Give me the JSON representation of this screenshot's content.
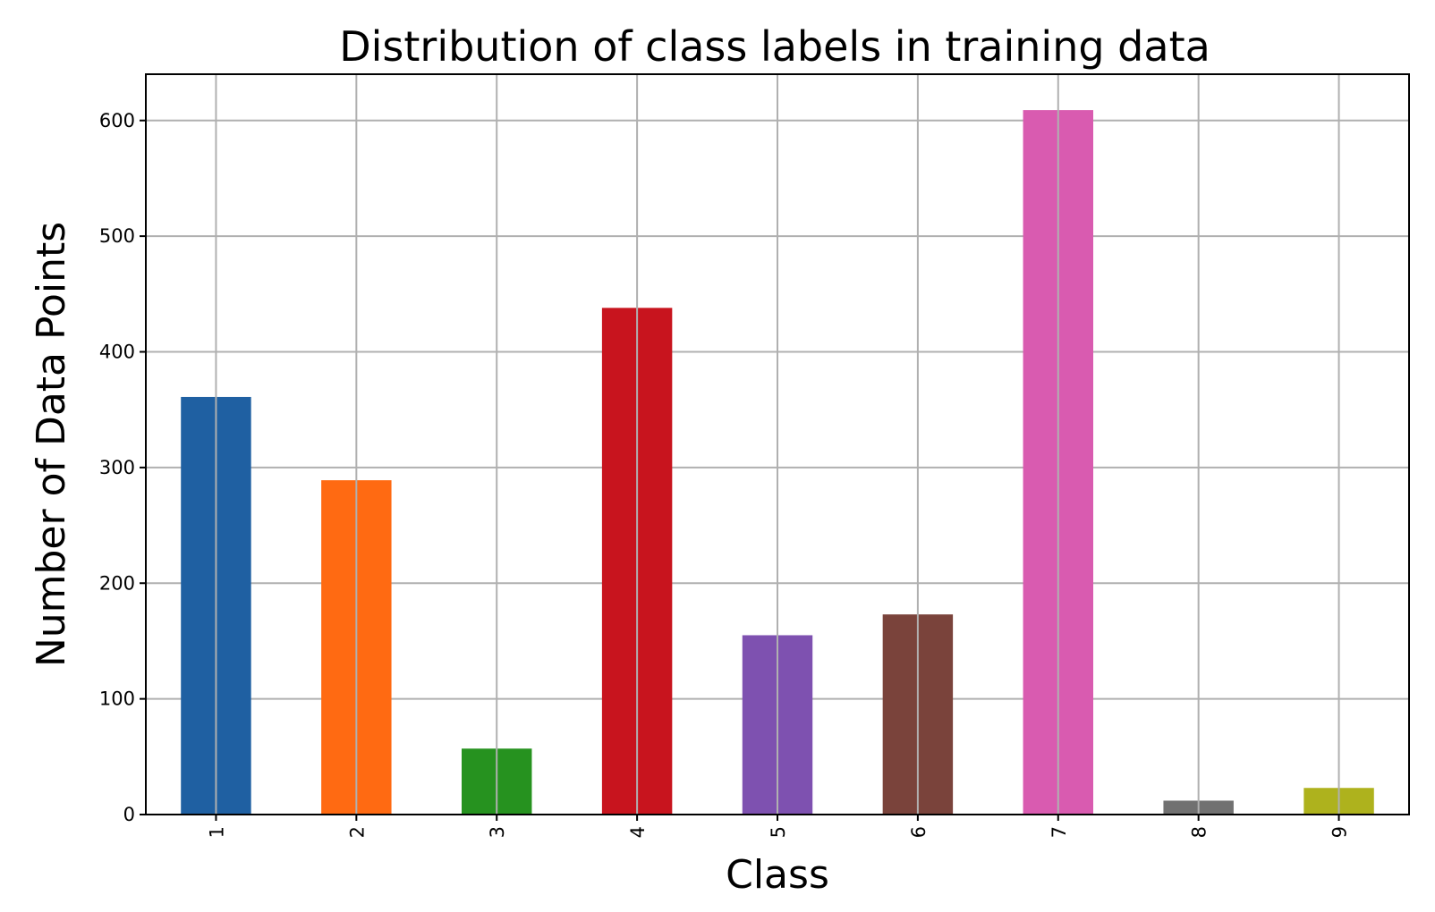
{
  "chart_data": {
    "type": "bar",
    "title": "Distribution of class labels in training data",
    "xlabel": "Class",
    "ylabel": "Number of Data Points",
    "categories": [
      "1",
      "2",
      "3",
      "4",
      "5",
      "6",
      "7",
      "8",
      "9"
    ],
    "values": [
      361,
      289,
      57,
      438,
      155,
      173,
      609,
      12,
      23
    ],
    "colors": [
      "#1f60a2",
      "#ff6a12",
      "#26921f",
      "#c8141e",
      "#7e51b0",
      "#7a433b",
      "#d95bb0",
      "#717171",
      "#aeb21d"
    ],
    "yticks": [
      0,
      100,
      200,
      300,
      400,
      500,
      600
    ],
    "ylim": [
      0,
      640
    ],
    "grid": true
  }
}
